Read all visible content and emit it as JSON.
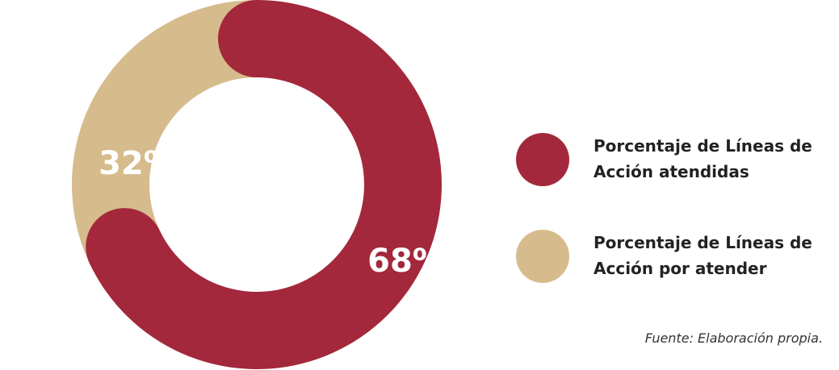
{
  "chart_data": {
    "type": "pie",
    "categories": [
      "Porcentaje de Líneas de Acción atendidas",
      "Porcentaje de Líneas de Acción por atender"
    ],
    "values": [
      68,
      32
    ],
    "value_labels": [
      "68%",
      "32%"
    ],
    "colors": [
      "#a3283b",
      "#d6bb8c"
    ],
    "source": "Fuente: Elaboración propia."
  }
}
